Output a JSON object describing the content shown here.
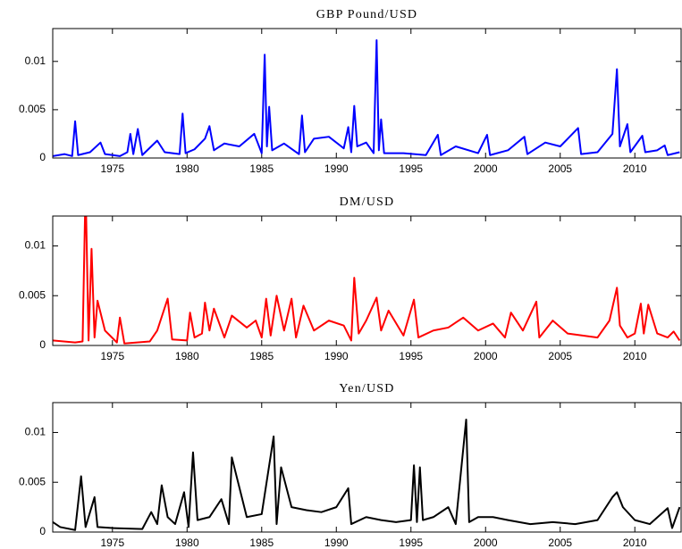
{
  "chart_data": [
    {
      "type": "line",
      "title": "GBP Pound/USD",
      "color": "#0000ff",
      "x": [
        1971.0,
        1971.8,
        1972.3,
        1972.5,
        1972.7,
        1973.5,
        1974.2,
        1974.5,
        1975.5,
        1976.0,
        1976.2,
        1976.4,
        1976.7,
        1977.0,
        1978.0,
        1978.5,
        1979.5,
        1979.7,
        1979.9,
        1980.5,
        1981.2,
        1981.5,
        1981.8,
        1982.5,
        1983.5,
        1984.5,
        1985.0,
        1985.2,
        1985.35,
        1985.5,
        1985.7,
        1986.5,
        1987.5,
        1987.7,
        1987.9,
        1988.5,
        1989.5,
        1990.5,
        1990.8,
        1991.0,
        1991.2,
        1991.4,
        1992.0,
        1992.5,
        1992.7,
        1992.85,
        1993.0,
        1993.2,
        1994.5,
        1996.0,
        1996.8,
        1997.0,
        1998.0,
        1999.5,
        2000.1,
        2000.3,
        2001.5,
        2002.6,
        2002.8,
        2004.0,
        2005.0,
        2006.2,
        2006.4,
        2007.5,
        2008.5,
        2008.8,
        2009.0,
        2009.5,
        2009.7,
        2010.5,
        2010.7,
        2011.5,
        2012.0,
        2012.2,
        2013.0
      ],
      "values": [
        0.0002,
        0.0004,
        0.0002,
        0.0038,
        0.0003,
        0.0006,
        0.0016,
        0.0004,
        0.0002,
        0.0006,
        0.0025,
        0.0004,
        0.003,
        0.0003,
        0.0018,
        0.0006,
        0.0004,
        0.0046,
        0.0005,
        0.0009,
        0.002,
        0.0033,
        0.0008,
        0.0015,
        0.0012,
        0.0025,
        0.0005,
        0.0107,
        0.0012,
        0.0053,
        0.0008,
        0.0015,
        0.0004,
        0.0044,
        0.0006,
        0.002,
        0.0022,
        0.001,
        0.0032,
        0.0006,
        0.0054,
        0.0012,
        0.0016,
        0.0005,
        0.0122,
        0.0008,
        0.004,
        0.0005,
        0.0005,
        0.0003,
        0.0024,
        0.0003,
        0.0012,
        0.0005,
        0.0024,
        0.0003,
        0.0008,
        0.0022,
        0.0004,
        0.0016,
        0.0012,
        0.0031,
        0.0004,
        0.0006,
        0.0025,
        0.0092,
        0.0012,
        0.0035,
        0.0006,
        0.0023,
        0.0006,
        0.0008,
        0.0013,
        0.0003,
        0.0006
      ],
      "xlim": [
        1971,
        2013.1
      ],
      "xticks": [
        1975,
        1980,
        1985,
        1990,
        1995,
        2000,
        2005,
        2010
      ],
      "ylim": [
        0,
        0.0134
      ],
      "yticks": [
        0,
        0.005,
        0.01
      ]
    },
    {
      "type": "line",
      "title": "DM/USD",
      "color": "#ff0000",
      "x": [
        1971.0,
        1972.5,
        1973.0,
        1973.2,
        1973.4,
        1973.6,
        1973.8,
        1974.0,
        1974.5,
        1975.3,
        1975.5,
        1975.8,
        1977.5,
        1978.0,
        1978.7,
        1979.0,
        1980.0,
        1980.2,
        1980.5,
        1981.0,
        1981.2,
        1981.5,
        1981.8,
        1982.5,
        1983.0,
        1984.0,
        1984.6,
        1985.0,
        1985.3,
        1985.6,
        1986.0,
        1986.5,
        1987.0,
        1987.3,
        1987.8,
        1988.5,
        1989.5,
        1990.5,
        1991.0,
        1991.2,
        1991.5,
        1992.0,
        1992.7,
        1993.0,
        1993.5,
        1994.5,
        1995.2,
        1995.5,
        1996.5,
        1997.5,
        1998.5,
        1999.5,
        2000.5,
        2001.3,
        2001.7,
        2002.5,
        2003.4,
        2003.6,
        2004.5,
        2005.5,
        2006.5,
        2007.5,
        2008.3,
        2008.8,
        2009.0,
        2009.5,
        2010.0,
        2010.4,
        2010.6,
        2010.9,
        2011.5,
        2012.2,
        2012.6,
        2013.0
      ],
      "values": [
        0.0005,
        0.0003,
        0.0004,
        0.016,
        0.0005,
        0.0097,
        0.0008,
        0.0045,
        0.0015,
        0.0003,
        0.0028,
        0.0002,
        0.0004,
        0.0015,
        0.0047,
        0.0006,
        0.0005,
        0.0033,
        0.0008,
        0.0012,
        0.0043,
        0.0015,
        0.0037,
        0.0008,
        0.003,
        0.0018,
        0.0025,
        0.0008,
        0.0047,
        0.001,
        0.005,
        0.0015,
        0.0047,
        0.0008,
        0.004,
        0.0015,
        0.0025,
        0.002,
        0.0005,
        0.0068,
        0.0012,
        0.0025,
        0.0048,
        0.0015,
        0.0035,
        0.001,
        0.0046,
        0.0008,
        0.0015,
        0.0018,
        0.0028,
        0.0015,
        0.0022,
        0.0008,
        0.0033,
        0.0015,
        0.0044,
        0.0008,
        0.0025,
        0.0012,
        0.001,
        0.0008,
        0.0025,
        0.0058,
        0.002,
        0.0008,
        0.0012,
        0.0042,
        0.0012,
        0.0041,
        0.0012,
        0.0008,
        0.0014,
        0.0005
      ],
      "xlim": [
        1971,
        2013.1
      ],
      "xticks": [
        1975,
        1980,
        1985,
        1990,
        1995,
        2000,
        2005,
        2010
      ],
      "ylim": [
        0,
        0.013
      ],
      "yticks": [
        0,
        0.005,
        0.01
      ]
    },
    {
      "type": "line",
      "title": "Yen/USD",
      "color": "#000000",
      "x": [
        1971.0,
        1971.5,
        1972.5,
        1972.9,
        1973.2,
        1973.8,
        1974.0,
        1975.0,
        1977.0,
        1977.6,
        1978.0,
        1978.3,
        1978.7,
        1979.2,
        1979.8,
        1980.1,
        1980.4,
        1980.7,
        1981.5,
        1982.3,
        1982.8,
        1983.0,
        1984.0,
        1985.0,
        1985.8,
        1986.0,
        1986.3,
        1987.0,
        1988.0,
        1989.0,
        1990.0,
        1990.8,
        1991.0,
        1992.0,
        1993.0,
        1994.0,
        1995.0,
        1995.2,
        1995.4,
        1995.6,
        1995.8,
        1996.5,
        1997.5,
        1998.0,
        1998.7,
        1998.9,
        1999.5,
        2000.5,
        2001.5,
        2003.0,
        2004.5,
        2006.0,
        2007.5,
        2008.5,
        2008.8,
        2009.2,
        2010.0,
        2011.0,
        2012.2,
        2012.5,
        2013.0
      ],
      "values": [
        0.001,
        0.0005,
        0.0002,
        0.0056,
        0.0005,
        0.0035,
        0.0005,
        0.0004,
        0.0003,
        0.002,
        0.0008,
        0.0047,
        0.0015,
        0.0008,
        0.004,
        0.0005,
        0.008,
        0.0012,
        0.0015,
        0.0033,
        0.0008,
        0.0075,
        0.0015,
        0.0018,
        0.0096,
        0.0008,
        0.0065,
        0.0025,
        0.0022,
        0.002,
        0.0025,
        0.0044,
        0.0008,
        0.0015,
        0.0012,
        0.001,
        0.0012,
        0.0067,
        0.001,
        0.0065,
        0.0012,
        0.0015,
        0.0025,
        0.0008,
        0.0113,
        0.001,
        0.0015,
        0.0015,
        0.0012,
        0.0008,
        0.001,
        0.0008,
        0.0012,
        0.0035,
        0.004,
        0.0025,
        0.0012,
        0.0008,
        0.0024,
        0.0004,
        0.0025
      ],
      "xlim": [
        1971,
        2013.1
      ],
      "xticks": [
        1975,
        1980,
        1985,
        1990,
        1995,
        2000,
        2005,
        2010
      ],
      "ylim": [
        0,
        0.013
      ],
      "yticks": [
        0,
        0.005,
        0.01
      ]
    }
  ]
}
